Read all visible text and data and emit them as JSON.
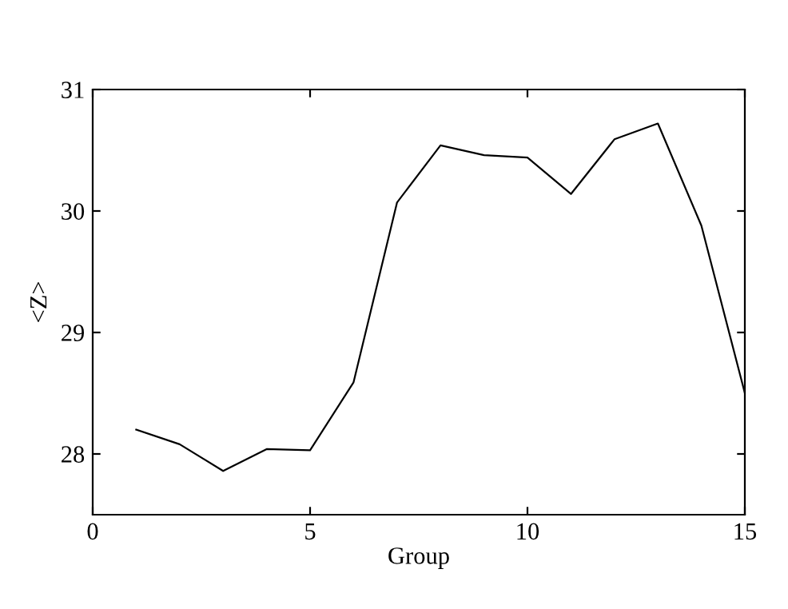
{
  "chart_data": {
    "type": "line",
    "xlabel": "Group",
    "ylabel": "<Z>",
    "x": [
      1,
      2,
      3,
      4,
      5,
      6,
      7,
      8,
      9,
      10,
      11,
      12,
      13,
      14,
      15
    ],
    "values": [
      28.2,
      28.08,
      27.86,
      28.04,
      28.03,
      28.59,
      30.07,
      30.54,
      30.46,
      30.44,
      30.14,
      30.59,
      30.72,
      29.88,
      28.5
    ],
    "color": "#000000",
    "xlim": [
      0,
      15
    ],
    "ylim": [
      27.5,
      31
    ],
    "xticks": [
      0,
      5,
      10,
      15
    ],
    "yticks": [
      28,
      29,
      30,
      31
    ],
    "grid": false,
    "legend": false,
    "marker": "none",
    "line_style": "solid"
  }
}
